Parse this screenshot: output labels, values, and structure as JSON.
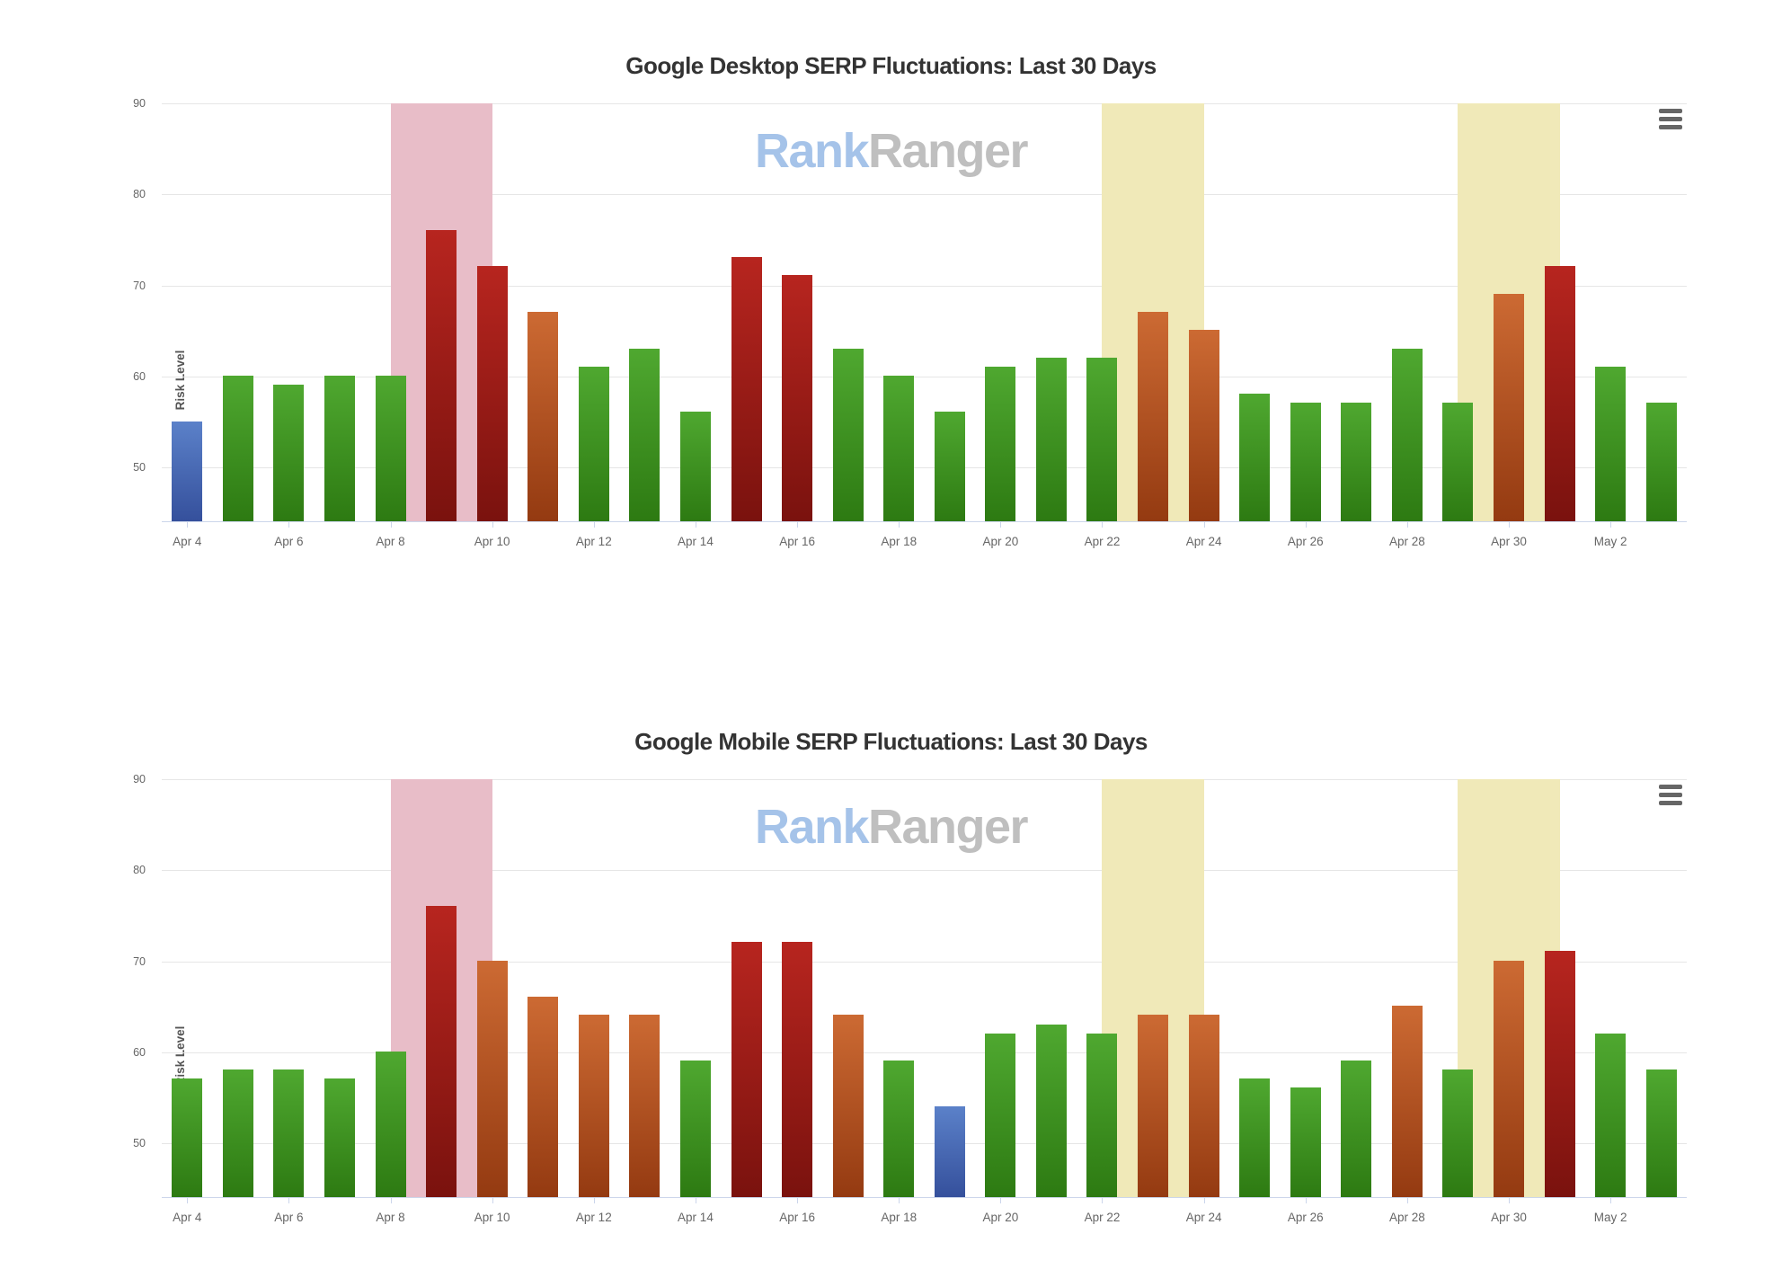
{
  "colors": {
    "low_risk_blue": "#5b81c9",
    "normal_risk_green": "#4fa830",
    "elevated_risk_orange": "#cc6a33",
    "high_risk_red": "#b7251f",
    "red_alert_band": "#e8bdc8",
    "yellow_alert_band": "#f0e9b8",
    "axis_line": "#ccd6eb",
    "gridline": "#e6e6e6",
    "label_gray": "#666666",
    "watermark_blue": "#a5c3e9",
    "watermark_gray": "#bfbfbf"
  },
  "ui": {
    "menu_icon": "hamburger-menu-icon"
  },
  "chart_data": [
    {
      "type": "bar",
      "title": "Google Desktop SERP Fluctuations: Last 30 Days",
      "xlabel": "",
      "ylabel": "Risk Level",
      "ylim": [
        44,
        90
      ],
      "yticks": [
        90,
        80,
        70,
        60,
        50
      ],
      "grid": true,
      "legend": false,
      "watermark": {
        "rank": "Rank",
        "ranger": "Ranger"
      },
      "categories": [
        "Apr 4",
        "Apr 5",
        "Apr 6",
        "Apr 7",
        "Apr 8",
        "Apr 9",
        "Apr 10",
        "Apr 11",
        "Apr 12",
        "Apr 13",
        "Apr 14",
        "Apr 15",
        "Apr 16",
        "Apr 17",
        "Apr 18",
        "Apr 19",
        "Apr 20",
        "Apr 21",
        "Apr 22",
        "Apr 23",
        "Apr 24",
        "Apr 25",
        "Apr 26",
        "Apr 27",
        "Apr 28",
        "Apr 29",
        "Apr 30",
        "May 1",
        "May 2",
        "May 3"
      ],
      "x_axis_labels": [
        "Apr 4",
        "Apr 6",
        "Apr 8",
        "Apr 10",
        "Apr 12",
        "Apr 14",
        "Apr 16",
        "Apr 18",
        "Apr 20",
        "Apr 22",
        "Apr 24",
        "Apr 26",
        "Apr 28",
        "Apr 30",
        "May 2"
      ],
      "series": [
        {
          "name": "Risk Level",
          "values": [
            55,
            60,
            59,
            60,
            60,
            76,
            72,
            67,
            61,
            63,
            56,
            73,
            71,
            63,
            60,
            56,
            61,
            62,
            62,
            67,
            65,
            58,
            57,
            57,
            63,
            57,
            69,
            72,
            61,
            57
          ],
          "levels": [
            "low",
            "normal",
            "normal",
            "normal",
            "normal",
            "high",
            "high",
            "elevated",
            "normal",
            "normal",
            "normal",
            "high",
            "high",
            "normal",
            "normal",
            "normal",
            "normal",
            "normal",
            "normal",
            "elevated",
            "elevated",
            "normal",
            "normal",
            "normal",
            "normal",
            "normal",
            "elevated",
            "high",
            "normal",
            "normal"
          ]
        }
      ],
      "plot_bands": [
        {
          "from": "Apr 8",
          "to": "Apr 10",
          "center": "Apr 9",
          "kind": "red"
        },
        {
          "from": "Apr 22",
          "to": "Apr 24",
          "center": "Apr 23",
          "kind": "yellow"
        },
        {
          "from": "Apr 29",
          "to": "May 1",
          "center": "Apr 30",
          "kind": "yellow"
        }
      ]
    },
    {
      "type": "bar",
      "title": "Google Mobile SERP Fluctuations: Last 30 Days",
      "xlabel": "",
      "ylabel": "Risk Level",
      "ylim": [
        44,
        90
      ],
      "yticks": [
        90,
        80,
        70,
        60,
        50
      ],
      "grid": true,
      "legend": false,
      "watermark": {
        "rank": "Rank",
        "ranger": "Ranger"
      },
      "categories": [
        "Apr 4",
        "Apr 5",
        "Apr 6",
        "Apr 7",
        "Apr 8",
        "Apr 9",
        "Apr 10",
        "Apr 11",
        "Apr 12",
        "Apr 13",
        "Apr 14",
        "Apr 15",
        "Apr 16",
        "Apr 17",
        "Apr 18",
        "Apr 19",
        "Apr 20",
        "Apr 21",
        "Apr 22",
        "Apr 23",
        "Apr 24",
        "Apr 25",
        "Apr 26",
        "Apr 27",
        "Apr 28",
        "Apr 29",
        "Apr 30",
        "May 1",
        "May 2",
        "May 3"
      ],
      "x_axis_labels": [
        "Apr 4",
        "Apr 6",
        "Apr 8",
        "Apr 10",
        "Apr 12",
        "Apr 14",
        "Apr 16",
        "Apr 18",
        "Apr 20",
        "Apr 22",
        "Apr 24",
        "Apr 26",
        "Apr 28",
        "Apr 30",
        "May 2"
      ],
      "series": [
        {
          "name": "Risk Level",
          "values": [
            57,
            58,
            58,
            57,
            60,
            76,
            70,
            66,
            64,
            64,
            59,
            72,
            72,
            64,
            59,
            54,
            62,
            63,
            62,
            64,
            64,
            57,
            56,
            59,
            65,
            58,
            70,
            71,
            62,
            58
          ],
          "levels": [
            "normal",
            "normal",
            "normal",
            "normal",
            "normal",
            "high",
            "elevated",
            "elevated",
            "elevated",
            "elevated",
            "normal",
            "high",
            "high",
            "elevated",
            "normal",
            "low",
            "normal",
            "normal",
            "normal",
            "elevated",
            "elevated",
            "normal",
            "normal",
            "normal",
            "elevated",
            "normal",
            "elevated",
            "high",
            "normal",
            "normal"
          ]
        }
      ],
      "plot_bands": [
        {
          "from": "Apr 8",
          "to": "Apr 10",
          "center": "Apr 9",
          "kind": "red"
        },
        {
          "from": "Apr 22",
          "to": "Apr 24",
          "center": "Apr 23",
          "kind": "yellow"
        },
        {
          "from": "Apr 29",
          "to": "May 1",
          "center": "Apr 30",
          "kind": "yellow"
        }
      ]
    }
  ]
}
